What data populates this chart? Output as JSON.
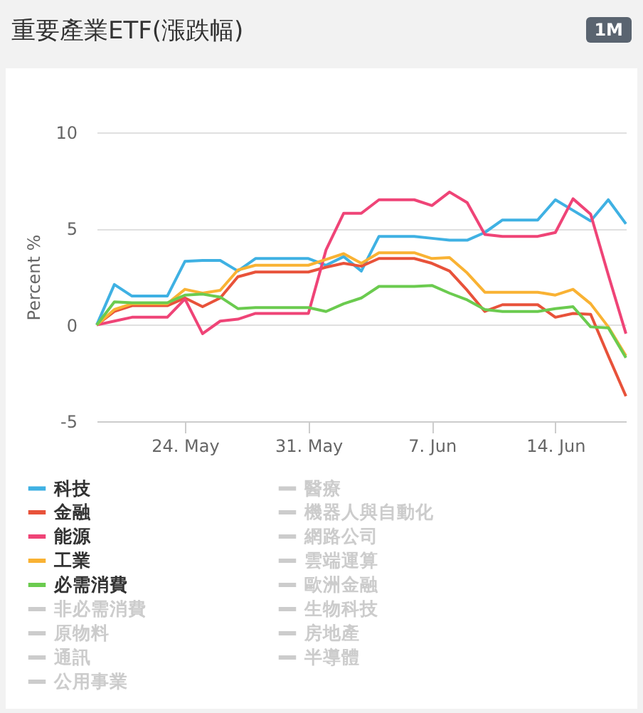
{
  "chart_data": {
    "type": "line",
    "title": "重要產業ETF(漲跌幅)",
    "ylabel": "Percent %",
    "annotations": [
      "1M"
    ],
    "x": [
      "--05-19",
      "--05-20",
      "--05-21",
      "--05-22",
      "--05-23",
      "--05-24",
      "--05-25",
      "--05-26",
      "--05-27",
      "--05-28",
      "--05-29",
      "--05-30",
      "--05-31",
      "--06-01",
      "--06-02",
      "--06-03",
      "--06-04",
      "--06-05",
      "--06-06",
      "--06-07",
      "--06-08",
      "--06-09",
      "--06-10",
      "--06-11",
      "--06-12",
      "--06-13",
      "--06-14",
      "--06-15",
      "--06-16",
      "--06-17",
      "--06-18"
    ],
    "xlim": [
      "--05-19",
      "--06-18"
    ],
    "xticks": [
      {
        "value": "--05-24",
        "label": "24. May"
      },
      {
        "value": "--05-31",
        "label": "31. May"
      },
      {
        "value": "--06-07",
        "label": "7. Jun"
      },
      {
        "value": "--06-14",
        "label": "14. Jun"
      }
    ],
    "ylim": [
      -5,
      10
    ],
    "yticks": [
      -5,
      0,
      5,
      10
    ],
    "grid": "y",
    "legend": "bottom",
    "series": [
      {
        "name": "科技",
        "color": "#3fb1e3",
        "values": [
          0,
          2.1,
          1.5,
          1.5,
          1.5,
          3.3,
          3.35,
          3.35,
          2.8,
          3.45,
          3.45,
          3.45,
          3.45,
          3.1,
          3.55,
          2.8,
          4.6,
          4.6,
          4.6,
          4.5,
          4.4,
          4.4,
          4.8,
          5.45,
          5.45,
          5.45,
          6.5,
          5.95,
          5.4,
          6.5,
          5.25
        ]
      },
      {
        "name": "金融",
        "color": "#e8523a",
        "values": [
          0,
          0.7,
          1.0,
          1.0,
          1.0,
          1.4,
          0.95,
          1.4,
          2.5,
          2.75,
          2.75,
          2.75,
          2.75,
          3.0,
          3.2,
          3.05,
          3.45,
          3.45,
          3.45,
          3.2,
          2.8,
          1.8,
          0.7,
          1.05,
          1.05,
          1.05,
          0.4,
          0.6,
          0.55,
          -1.6,
          -3.7
        ]
      },
      {
        "name": "能源",
        "color": "#ef4477",
        "values": [
          0,
          0.2,
          0.4,
          0.4,
          0.4,
          1.35,
          -0.45,
          0.2,
          0.3,
          0.6,
          0.6,
          0.6,
          0.6,
          3.9,
          5.8,
          5.8,
          6.5,
          6.5,
          6.5,
          6.2,
          6.9,
          6.35,
          4.7,
          4.6,
          4.6,
          4.6,
          4.8,
          6.55,
          5.75,
          2.6,
          -0.45
        ]
      },
      {
        "name": "工業",
        "color": "#f9b233",
        "values": [
          0,
          0.8,
          1.1,
          1.1,
          1.1,
          1.85,
          1.65,
          1.8,
          2.85,
          3.1,
          3.1,
          3.1,
          3.1,
          3.4,
          3.7,
          3.2,
          3.75,
          3.75,
          3.75,
          3.45,
          3.5,
          2.7,
          1.7,
          1.7,
          1.7,
          1.7,
          1.55,
          1.85,
          1.1,
          -0.1,
          -1.6
        ]
      },
      {
        "name": "必需消費",
        "color": "#6bcb4f",
        "values": [
          0,
          1.2,
          1.15,
          1.15,
          1.15,
          1.55,
          1.6,
          1.45,
          0.85,
          0.9,
          0.9,
          0.9,
          0.9,
          0.7,
          1.1,
          1.4,
          2.0,
          2.0,
          2.0,
          2.05,
          1.65,
          1.3,
          0.8,
          0.7,
          0.7,
          0.7,
          0.85,
          0.95,
          -0.1,
          -0.15,
          -1.7
        ]
      },
      {
        "name": "非必需消費",
        "color": "#cccccc",
        "values": [
          null,
          null,
          null,
          null,
          null,
          null,
          null,
          null,
          null,
          null,
          null,
          null,
          null,
          null,
          null,
          null,
          null,
          null,
          null,
          null,
          null,
          null,
          null,
          null,
          null,
          null,
          null,
          null,
          null,
          null,
          null
        ]
      },
      {
        "name": "原物料",
        "color": "#cccccc",
        "values": [
          null,
          null,
          null,
          null,
          null,
          null,
          null,
          null,
          null,
          null,
          null,
          null,
          null,
          null,
          null,
          null,
          null,
          null,
          null,
          null,
          null,
          null,
          null,
          null,
          null,
          null,
          null,
          null,
          null,
          null,
          null
        ]
      },
      {
        "name": "通訊",
        "color": "#cccccc",
        "values": [
          null,
          null,
          null,
          null,
          null,
          null,
          null,
          null,
          null,
          null,
          null,
          null,
          null,
          null,
          null,
          null,
          null,
          null,
          null,
          null,
          null,
          null,
          null,
          null,
          null,
          null,
          null,
          null,
          null,
          null,
          null
        ]
      },
      {
        "name": "公用事業",
        "color": "#cccccc",
        "values": [
          null,
          null,
          null,
          null,
          null,
          null,
          null,
          null,
          null,
          null,
          null,
          null,
          null,
          null,
          null,
          null,
          null,
          null,
          null,
          null,
          null,
          null,
          null,
          null,
          null,
          null,
          null,
          null,
          null,
          null,
          null
        ]
      },
      {
        "name": "醫療",
        "color": "#cccccc",
        "values": [
          null,
          null,
          null,
          null,
          null,
          null,
          null,
          null,
          null,
          null,
          null,
          null,
          null,
          null,
          null,
          null,
          null,
          null,
          null,
          null,
          null,
          null,
          null,
          null,
          null,
          null,
          null,
          null,
          null,
          null,
          null
        ]
      },
      {
        "name": "機器人與自動化",
        "color": "#cccccc",
        "values": [
          null,
          null,
          null,
          null,
          null,
          null,
          null,
          null,
          null,
          null,
          null,
          null,
          null,
          null,
          null,
          null,
          null,
          null,
          null,
          null,
          null,
          null,
          null,
          null,
          null,
          null,
          null,
          null,
          null,
          null,
          null
        ]
      },
      {
        "name": "網路公司",
        "color": "#cccccc",
        "values": [
          null,
          null,
          null,
          null,
          null,
          null,
          null,
          null,
          null,
          null,
          null,
          null,
          null,
          null,
          null,
          null,
          null,
          null,
          null,
          null,
          null,
          null,
          null,
          null,
          null,
          null,
          null,
          null,
          null,
          null,
          null
        ]
      },
      {
        "name": "雲端運算",
        "color": "#cccccc",
        "values": [
          null,
          null,
          null,
          null,
          null,
          null,
          null,
          null,
          null,
          null,
          null,
          null,
          null,
          null,
          null,
          null,
          null,
          null,
          null,
          null,
          null,
          null,
          null,
          null,
          null,
          null,
          null,
          null,
          null,
          null,
          null
        ]
      },
      {
        "name": "歐洲金融",
        "color": "#cccccc",
        "values": [
          null,
          null,
          null,
          null,
          null,
          null,
          null,
          null,
          null,
          null,
          null,
          null,
          null,
          null,
          null,
          null,
          null,
          null,
          null,
          null,
          null,
          null,
          null,
          null,
          null,
          null,
          null,
          null,
          null,
          null,
          null
        ]
      },
      {
        "name": "生物科技",
        "color": "#cccccc",
        "values": [
          null,
          null,
          null,
          null,
          null,
          null,
          null,
          null,
          null,
          null,
          null,
          null,
          null,
          null,
          null,
          null,
          null,
          null,
          null,
          null,
          null,
          null,
          null,
          null,
          null,
          null,
          null,
          null,
          null,
          null,
          null
        ]
      },
      {
        "name": "房地產",
        "color": "#cccccc",
        "values": [
          null,
          null,
          null,
          null,
          null,
          null,
          null,
          null,
          null,
          null,
          null,
          null,
          null,
          null,
          null,
          null,
          null,
          null,
          null,
          null,
          null,
          null,
          null,
          null,
          null,
          null,
          null,
          null,
          null,
          null,
          null
        ]
      },
      {
        "name": "半導體",
        "color": "#cccccc",
        "values": [
          null,
          null,
          null,
          null,
          null,
          null,
          null,
          null,
          null,
          null,
          null,
          null,
          null,
          null,
          null,
          null,
          null,
          null,
          null,
          null,
          null,
          null,
          null,
          null,
          null,
          null,
          null,
          null,
          null,
          null,
          null
        ]
      }
    ]
  }
}
